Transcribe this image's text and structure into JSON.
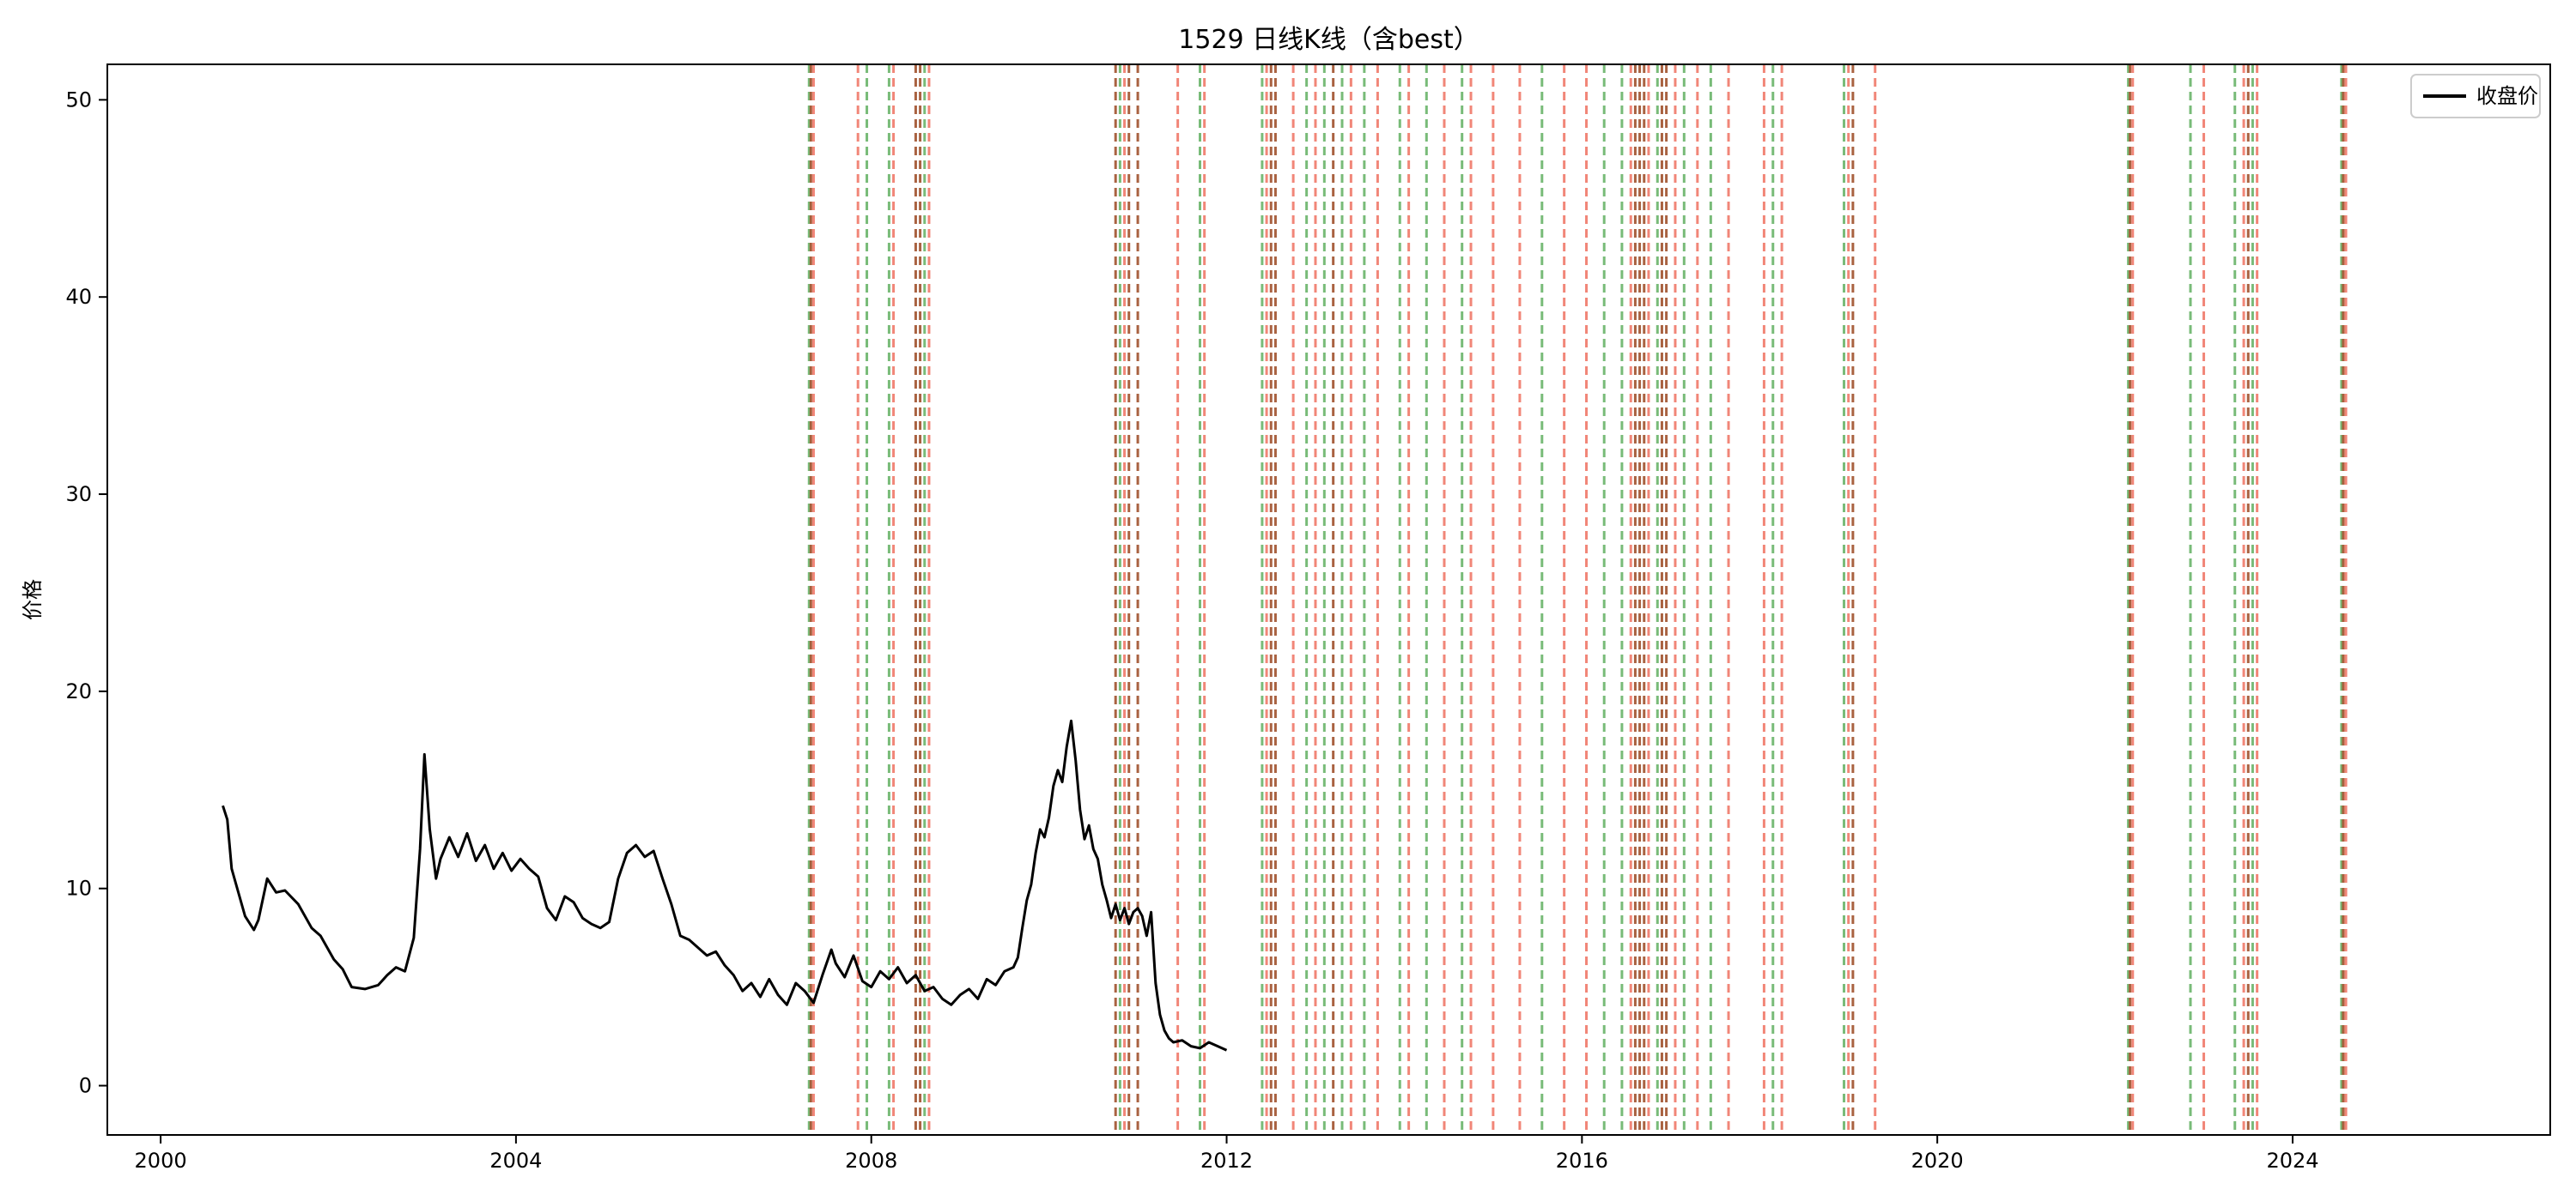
{
  "chart_data": {
    "type": "line",
    "title": "1529 日线K线（含best）",
    "xlabel": "",
    "ylabel": "价格",
    "xlim": [
      1999.4,
      2026.9
    ],
    "ylim": [
      -2.5,
      51.8
    ],
    "grid": false,
    "legend_position": "top-right",
    "x_ticks": [
      {
        "value": 2000,
        "label": "2000"
      },
      {
        "value": 2004,
        "label": "2004"
      },
      {
        "value": 2008,
        "label": "2008"
      },
      {
        "value": 2012,
        "label": "2012"
      },
      {
        "value": 2016,
        "label": "2016"
      },
      {
        "value": 2020,
        "label": "2020"
      },
      {
        "value": 2024,
        "label": "2024"
      }
    ],
    "y_ticks": [
      {
        "value": 0,
        "label": "0"
      },
      {
        "value": 10,
        "label": "10"
      },
      {
        "value": 20,
        "label": "20"
      },
      {
        "value": 30,
        "label": "30"
      },
      {
        "value": 40,
        "label": "40"
      },
      {
        "value": 50,
        "label": "50"
      }
    ],
    "series": [
      {
        "name": "收盘价",
        "color": "#000000",
        "points": [
          [
            2000.7,
            14.2
          ],
          [
            2000.75,
            13.5
          ],
          [
            2000.8,
            11.0
          ],
          [
            2000.85,
            10.2
          ],
          [
            2000.95,
            8.6
          ],
          [
            2001.05,
            7.9
          ],
          [
            2001.1,
            8.4
          ],
          [
            2001.2,
            10.5
          ],
          [
            2001.3,
            9.8
          ],
          [
            2001.4,
            9.9
          ],
          [
            2001.55,
            9.2
          ],
          [
            2001.7,
            8.0
          ],
          [
            2001.8,
            7.6
          ],
          [
            2001.95,
            6.4
          ],
          [
            2002.05,
            5.9
          ],
          [
            2002.15,
            5.0
          ],
          [
            2002.3,
            4.9
          ],
          [
            2002.45,
            5.1
          ],
          [
            2002.55,
            5.6
          ],
          [
            2002.65,
            6.0
          ],
          [
            2002.75,
            5.8
          ],
          [
            2002.85,
            7.5
          ],
          [
            2002.92,
            12.0
          ],
          [
            2002.97,
            16.8
          ],
          [
            2003.03,
            13.0
          ],
          [
            2003.1,
            10.5
          ],
          [
            2003.15,
            11.5
          ],
          [
            2003.25,
            12.6
          ],
          [
            2003.35,
            11.6
          ],
          [
            2003.45,
            12.8
          ],
          [
            2003.55,
            11.4
          ],
          [
            2003.65,
            12.2
          ],
          [
            2003.75,
            11.0
          ],
          [
            2003.85,
            11.8
          ],
          [
            2003.95,
            10.9
          ],
          [
            2004.05,
            11.5
          ],
          [
            2004.15,
            11.0
          ],
          [
            2004.25,
            10.6
          ],
          [
            2004.35,
            9.0
          ],
          [
            2004.45,
            8.4
          ],
          [
            2004.55,
            9.6
          ],
          [
            2004.65,
            9.3
          ],
          [
            2004.75,
            8.5
          ],
          [
            2004.85,
            8.2
          ],
          [
            2004.95,
            8.0
          ],
          [
            2005.05,
            8.3
          ],
          [
            2005.15,
            10.5
          ],
          [
            2005.25,
            11.8
          ],
          [
            2005.35,
            12.2
          ],
          [
            2005.45,
            11.6
          ],
          [
            2005.55,
            11.9
          ],
          [
            2005.65,
            10.5
          ],
          [
            2005.75,
            9.2
          ],
          [
            2005.85,
            7.6
          ],
          [
            2005.95,
            7.4
          ],
          [
            2006.05,
            7.0
          ],
          [
            2006.15,
            6.6
          ],
          [
            2006.25,
            6.8
          ],
          [
            2006.35,
            6.1
          ],
          [
            2006.45,
            5.6
          ],
          [
            2006.55,
            4.8
          ],
          [
            2006.65,
            5.2
          ],
          [
            2006.75,
            4.5
          ],
          [
            2006.85,
            5.4
          ],
          [
            2006.95,
            4.6
          ],
          [
            2007.05,
            4.1
          ],
          [
            2007.15,
            5.2
          ],
          [
            2007.25,
            4.8
          ],
          [
            2007.35,
            4.2
          ],
          [
            2007.45,
            5.6
          ],
          [
            2007.55,
            6.9
          ],
          [
            2007.6,
            6.2
          ],
          [
            2007.7,
            5.5
          ],
          [
            2007.8,
            6.6
          ],
          [
            2007.9,
            5.3
          ],
          [
            2008.0,
            5.0
          ],
          [
            2008.1,
            5.8
          ],
          [
            2008.2,
            5.4
          ],
          [
            2008.3,
            6.0
          ],
          [
            2008.4,
            5.2
          ],
          [
            2008.5,
            5.6
          ],
          [
            2008.6,
            4.8
          ],
          [
            2008.7,
            5.0
          ],
          [
            2008.8,
            4.4
          ],
          [
            2008.9,
            4.1
          ],
          [
            2009.0,
            4.6
          ],
          [
            2009.1,
            4.9
          ],
          [
            2009.2,
            4.4
          ],
          [
            2009.3,
            5.4
          ],
          [
            2009.4,
            5.1
          ],
          [
            2009.5,
            5.8
          ],
          [
            2009.6,
            6.0
          ],
          [
            2009.65,
            6.5
          ],
          [
            2009.7,
            8.0
          ],
          [
            2009.75,
            9.4
          ],
          [
            2009.8,
            10.2
          ],
          [
            2009.85,
            11.8
          ],
          [
            2009.9,
            13.0
          ],
          [
            2009.95,
            12.6
          ],
          [
            2010.0,
            13.6
          ],
          [
            2010.05,
            15.2
          ],
          [
            2010.1,
            16.0
          ],
          [
            2010.15,
            15.4
          ],
          [
            2010.2,
            17.2
          ],
          [
            2010.25,
            18.5
          ],
          [
            2010.3,
            16.5
          ],
          [
            2010.35,
            14.0
          ],
          [
            2010.4,
            12.5
          ],
          [
            2010.45,
            13.2
          ],
          [
            2010.5,
            12.0
          ],
          [
            2010.55,
            11.5
          ],
          [
            2010.6,
            10.2
          ],
          [
            2010.65,
            9.4
          ],
          [
            2010.7,
            8.5
          ],
          [
            2010.75,
            9.2
          ],
          [
            2010.8,
            8.4
          ],
          [
            2010.85,
            9.0
          ],
          [
            2010.9,
            8.2
          ],
          [
            2010.95,
            8.8
          ],
          [
            2011.0,
            9.0
          ],
          [
            2011.05,
            8.6
          ],
          [
            2011.1,
            7.6
          ],
          [
            2011.15,
            8.8
          ],
          [
            2011.2,
            5.2
          ],
          [
            2011.25,
            3.6
          ],
          [
            2011.3,
            2.8
          ],
          [
            2011.35,
            2.4
          ],
          [
            2011.4,
            2.2
          ],
          [
            2011.5,
            2.3
          ],
          [
            2011.6,
            2.0
          ],
          [
            2011.7,
            1.9
          ],
          [
            2011.8,
            2.2
          ],
          [
            2011.9,
            2.0
          ],
          [
            2012.0,
            1.8
          ]
        ]
      }
    ],
    "vertical_markers": {
      "description": "dashed vertical signal lines",
      "green": [
        2007.3,
        2007.95,
        2008.2,
        2008.6,
        2010.8,
        2011.7,
        2012.4,
        2012.9,
        2013.1,
        2013.3,
        2013.55,
        2013.95,
        2014.25,
        2014.65,
        2015.55,
        2016.25,
        2016.45,
        2016.85,
        2017.15,
        2017.45,
        2018.15,
        2018.95,
        2022.15,
        2022.85,
        2023.35,
        2023.55,
        2024.55
      ],
      "red": [
        2007.35,
        2007.85,
        2008.25,
        2008.65,
        2010.85,
        2011.45,
        2011.75,
        2012.45,
        2012.75,
        2013.0,
        2013.4,
        2013.7,
        2014.05,
        2014.45,
        2014.75,
        2015.0,
        2015.3,
        2015.8,
        2016.05,
        2016.55,
        2016.75,
        2017.05,
        2017.3,
        2017.65,
        2018.05,
        2018.25,
        2019.0,
        2019.3,
        2022.2,
        2023.0,
        2023.45,
        2023.6,
        2024.6
      ],
      "brown": [
        2007.32,
        2008.5,
        2008.55,
        2010.75,
        2010.9,
        2011.0,
        2012.5,
        2012.55,
        2013.2,
        2016.6,
        2016.65,
        2016.7,
        2016.9,
        2016.95,
        2019.05,
        2022.17,
        2023.5,
        2024.57
      ]
    }
  },
  "legend": {
    "label": "收盘价",
    "color": "#000000"
  }
}
